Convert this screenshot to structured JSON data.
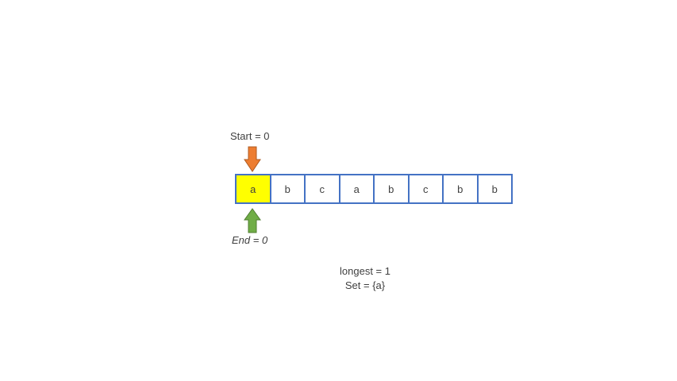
{
  "start_label": "Start = 0",
  "end_label": "End = 0",
  "cells": [
    "a",
    "b",
    "c",
    "a",
    "b",
    "c",
    "b",
    "b"
  ],
  "active_index": 0,
  "longest_label": "longest = 1",
  "set_label": "Set =  {a}",
  "colors": {
    "cell_border": "#4472c4",
    "active_fill": "#ffff00",
    "start_arrow": "#ed7d31",
    "end_arrow": "#70ad47"
  }
}
